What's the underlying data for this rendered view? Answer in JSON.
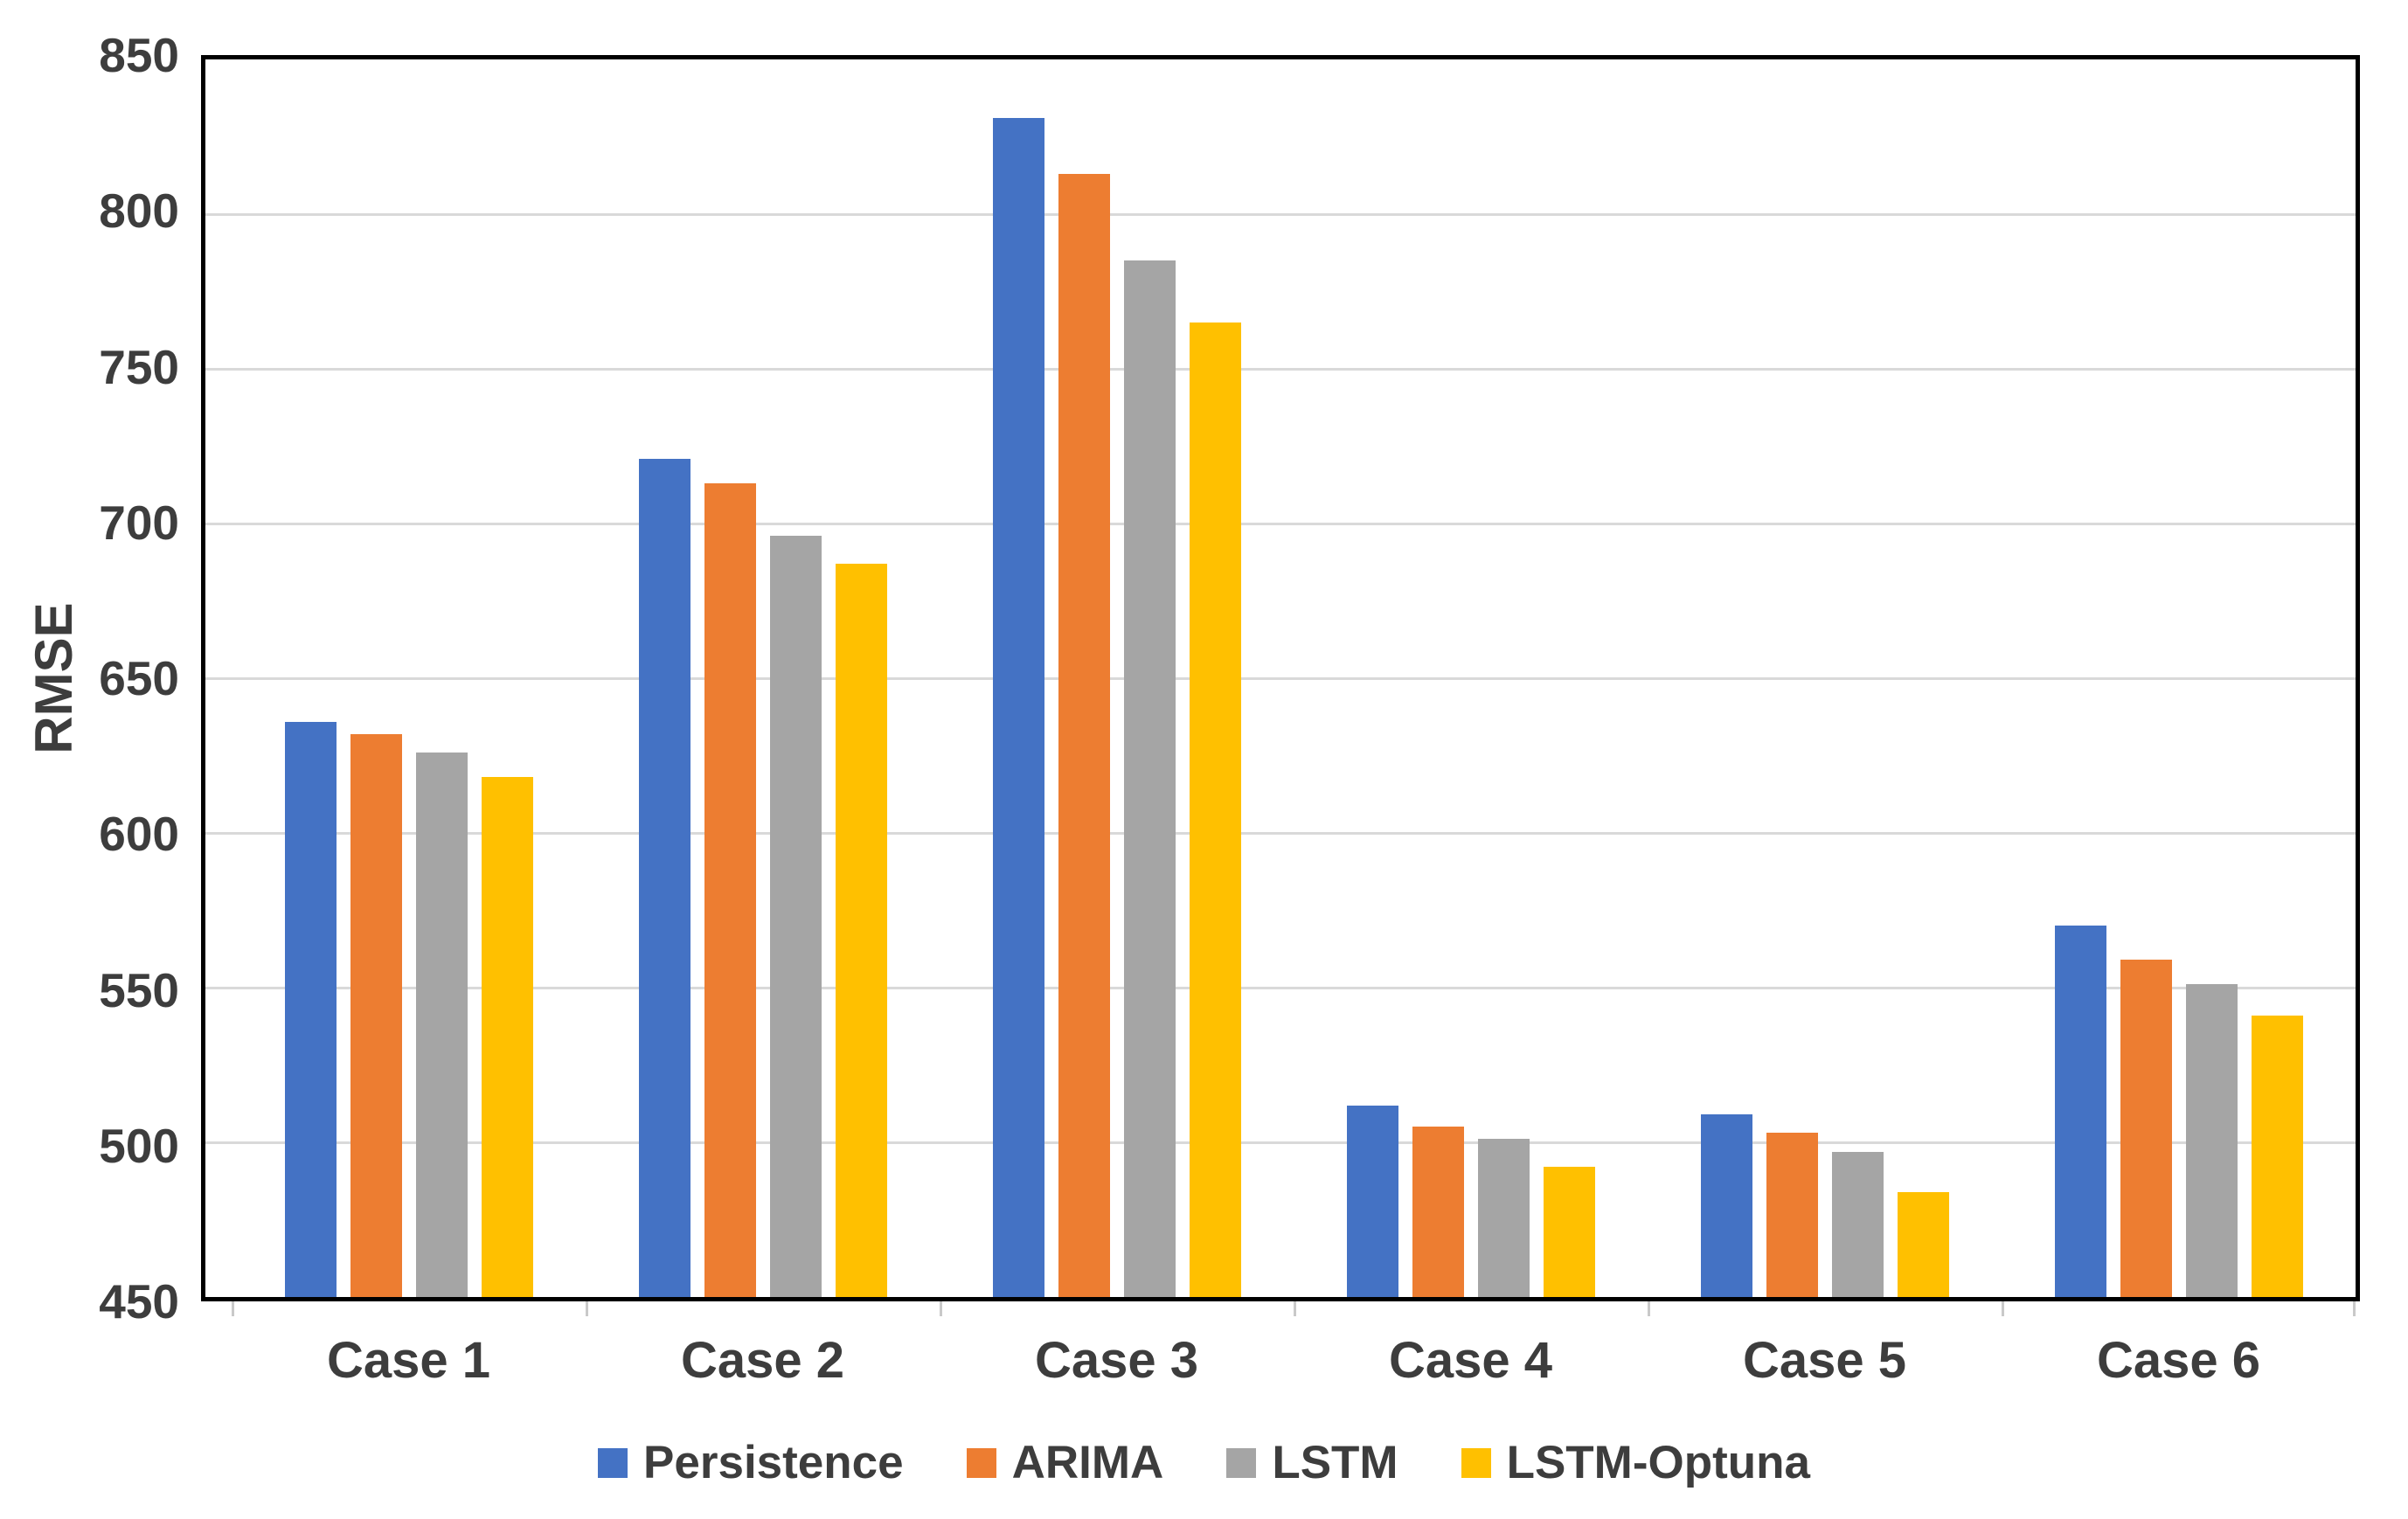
{
  "chart_data": {
    "type": "bar",
    "title": "",
    "ylabel": "RMSE",
    "xlabel": "",
    "categories": [
      "Case 1",
      "Case 2",
      "Case 3",
      "Case 4",
      "Case 5",
      "Case 6"
    ],
    "series": [
      {
        "name": "Persistence",
        "color": "#4472C4",
        "values": [
          636,
          721,
          831,
          512,
          509,
          570
        ]
      },
      {
        "name": "ARIMA",
        "color": "#ED7D31",
        "values": [
          632,
          713,
          813,
          505,
          503,
          559
        ]
      },
      {
        "name": "LSTM",
        "color": "#A5A5A5",
        "values": [
          626,
          696,
          785,
          501,
          497,
          551
        ]
      },
      {
        "name": "LSTM-Optuna",
        "color": "#FFC000",
        "values": [
          618,
          687,
          765,
          492,
          484,
          541
        ]
      }
    ],
    "ylim": [
      450,
      850
    ],
    "ytick_step": 50,
    "yticks": [
      850,
      800,
      750,
      700,
      650,
      600,
      550,
      500,
      450
    ],
    "grid": true,
    "legend_position": "bottom",
    "styles": {
      "grid_color": "#D9D9D9",
      "axis_box_color": "#000000",
      "text_color": "#3d3d3d",
      "tick_mark_color": "#C9C9C9",
      "background": "#ffffff"
    }
  }
}
